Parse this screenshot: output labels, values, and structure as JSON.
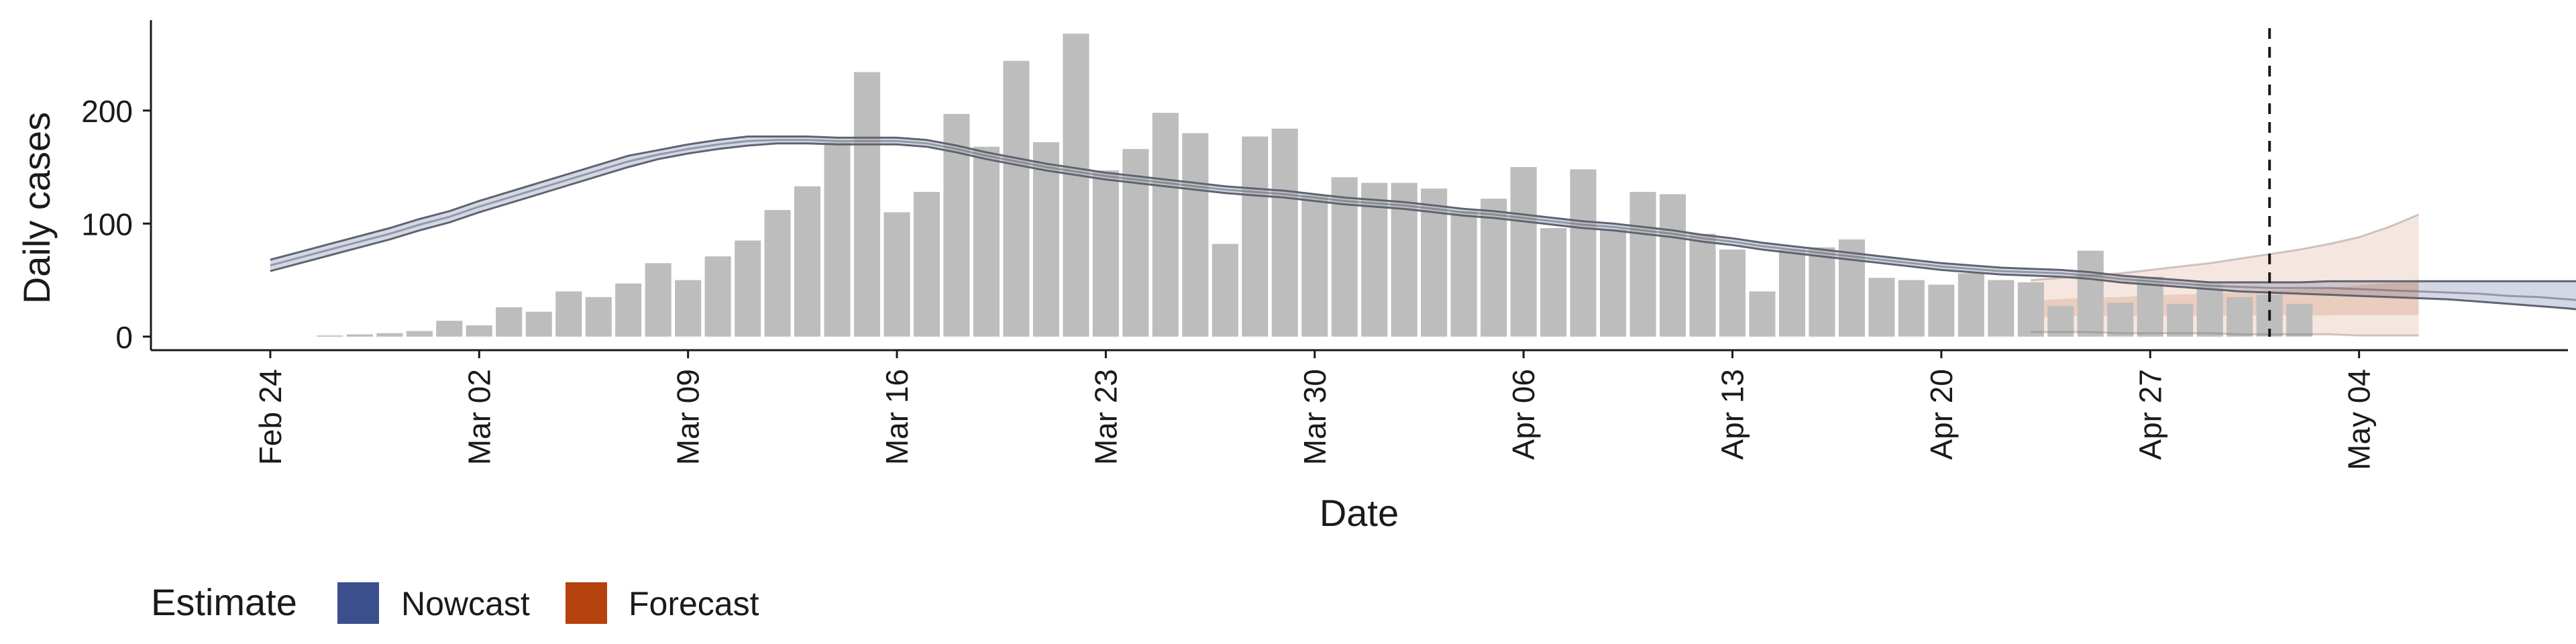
{
  "chart_data": {
    "type": "bar",
    "xlabel": "Date",
    "ylabel": "Daily cases",
    "x_tick_labels": [
      "Feb 24",
      "Mar 02",
      "Mar 09",
      "Mar 16",
      "Mar 23",
      "Mar 30",
      "Apr 06",
      "Apr 13",
      "Apr 20",
      "Apr 27",
      "May 04"
    ],
    "x_tick_dates": [
      "2020-02-24",
      "2020-03-02",
      "2020-03-09",
      "2020-03-16",
      "2020-03-23",
      "2020-03-30",
      "2020-04-06",
      "2020-04-13",
      "2020-04-20",
      "2020-04-27",
      "2020-05-04"
    ],
    "y_ticks": [
      0,
      100,
      200
    ],
    "xlim": [
      "2020-02-20",
      "2020-05-11"
    ],
    "ylim": [
      -12,
      280
    ],
    "grid": false,
    "reference_line_date": "2020-05-01",
    "bars": {
      "start_date": "2020-02-26",
      "values": [
        1,
        2,
        3,
        5,
        14,
        10,
        26,
        22,
        40,
        35,
        47,
        65,
        50,
        71,
        85,
        112,
        133,
        172,
        234,
        110,
        128,
        197,
        168,
        244,
        172,
        268,
        147,
        166,
        198,
        180,
        82,
        177,
        184,
        125,
        141,
        136,
        136,
        131,
        111,
        122,
        150,
        96,
        148,
        95,
        128,
        126,
        91,
        77,
        40,
        77,
        79,
        86,
        52,
        50,
        46,
        56,
        50,
        48,
        27,
        76,
        30,
        53,
        29,
        48,
        35,
        37,
        29
      ]
    },
    "series": [
      {
        "name": "Nowcast",
        "color": "#3A4F8C",
        "start_date": "2020-02-24",
        "median": [
          63,
          70,
          77,
          84,
          91,
          99,
          106,
          115,
          123,
          131,
          139,
          147,
          155,
          161,
          166,
          170,
          173,
          174,
          174,
          173,
          173,
          173,
          171,
          166,
          160,
          155,
          150,
          146,
          142,
          139,
          136,
          133,
          130,
          128,
          126,
          123,
          120,
          118,
          116,
          113,
          110,
          108,
          105,
          102,
          99,
          97,
          94,
          91,
          87,
          84,
          80,
          77,
          74,
          71,
          68,
          65,
          62,
          60,
          58,
          57,
          56,
          54,
          51,
          49,
          47,
          45,
          44,
          43,
          43,
          43,
          42,
          41,
          40,
          39,
          38,
          36,
          35,
          33,
          31,
          29,
          27,
          24
        ],
        "lower": [
          58,
          65,
          72,
          79,
          86,
          94,
          101,
          110,
          118,
          126,
          134,
          142,
          150,
          157,
          162,
          166,
          169,
          171,
          171,
          170,
          170,
          170,
          168,
          163,
          157,
          152,
          147,
          143,
          139,
          136,
          133,
          130,
          127,
          125,
          123,
          120,
          117,
          115,
          113,
          110,
          107,
          105,
          102,
          99,
          96,
          94,
          91,
          88,
          84,
          81,
          77,
          74,
          71,
          68,
          65,
          62,
          59,
          57,
          55,
          54,
          53,
          51,
          48,
          46,
          44,
          42,
          40,
          39,
          38,
          37,
          36,
          35,
          34,
          33,
          31,
          29,
          27,
          25,
          22,
          20,
          17,
          14
        ],
        "upper": [
          68,
          75,
          82,
          89,
          96,
          104,
          111,
          120,
          128,
          136,
          144,
          152,
          160,
          165,
          170,
          174,
          177,
          177,
          177,
          176,
          176,
          176,
          174,
          169,
          163,
          158,
          153,
          149,
          145,
          142,
          139,
          136,
          133,
          131,
          129,
          126,
          123,
          121,
          119,
          116,
          113,
          111,
          108,
          105,
          102,
          100,
          97,
          94,
          90,
          87,
          83,
          80,
          77,
          74,
          71,
          68,
          65,
          63,
          61,
          60,
          59,
          57,
          54,
          52,
          50,
          48,
          48,
          48,
          48,
          49,
          49,
          49,
          49,
          49,
          49,
          49,
          49,
          49,
          49,
          49,
          49,
          49
        ]
      },
      {
        "name": "Forecast",
        "color": "#B5420E",
        "start_date": "2020-04-23",
        "median": [
          26,
          27,
          28,
          28,
          29,
          29,
          29,
          30,
          30,
          30,
          30,
          31,
          31,
          31
        ],
        "lower": [
          4,
          4,
          4,
          3,
          3,
          3,
          3,
          2,
          2,
          2,
          2,
          1,
          1,
          1
        ],
        "upper": [
          50,
          52,
          54,
          56,
          59,
          62,
          65,
          69,
          73,
          77,
          82,
          88,
          97,
          108
        ]
      }
    ]
  },
  "legend": {
    "title": "Estimate",
    "items": [
      {
        "label": "Nowcast",
        "color": "#3A4F8C"
      },
      {
        "label": "Forecast",
        "color": "#B5420E"
      }
    ]
  },
  "colors": {
    "bar": "#BDBDBD",
    "median_line": "#5E6470",
    "reference_line": "#1A1A1A"
  }
}
